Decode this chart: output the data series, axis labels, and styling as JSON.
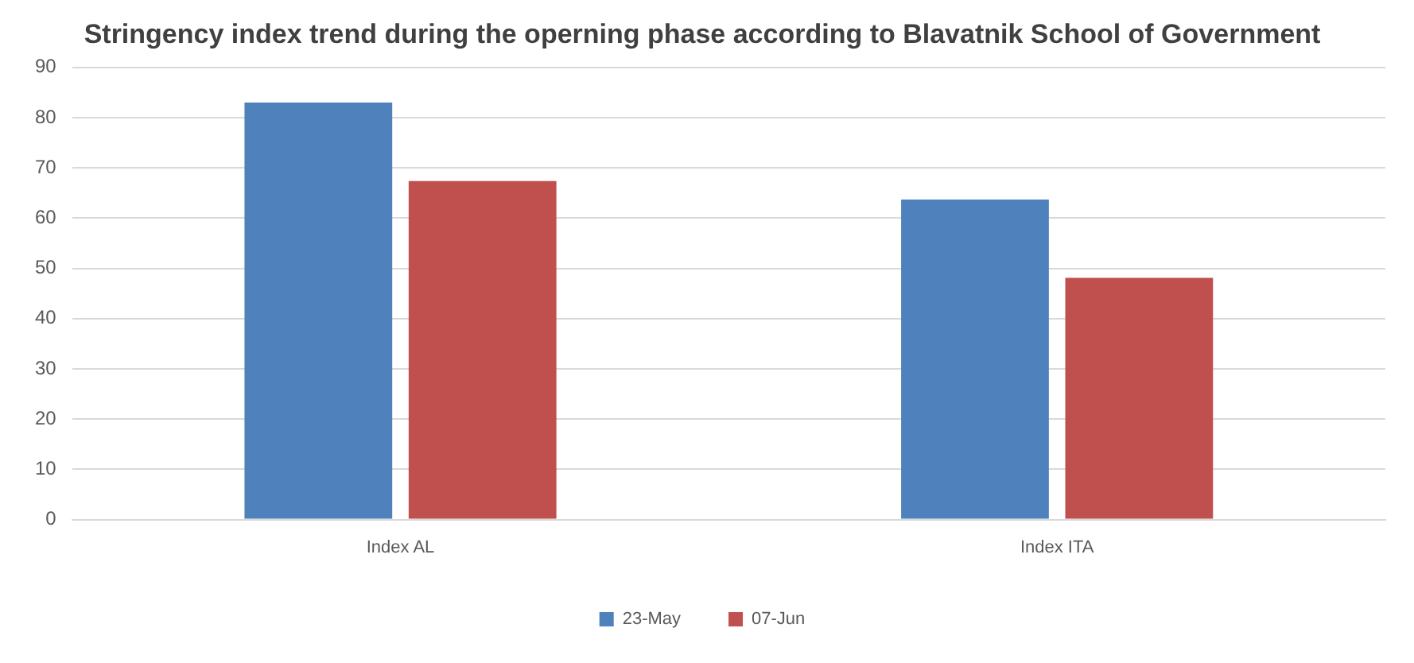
{
  "chart_data": {
    "type": "bar",
    "title": "Stringency index trend during the operning phase according to Blavatnik School of Government",
    "categories": [
      "Index AL",
      "Index ITA"
    ],
    "series": [
      {
        "name": "23-May",
        "color": "#4f81bd",
        "values": [
          83,
          63.7
        ]
      },
      {
        "name": "07-Jun",
        "color": "#c0504d",
        "values": [
          67.4,
          48.1
        ]
      }
    ],
    "ylim": [
      0,
      90
    ],
    "yticks": [
      0,
      10,
      20,
      30,
      40,
      50,
      60,
      70,
      80,
      90
    ],
    "grid": "y",
    "legend": "bottom"
  }
}
